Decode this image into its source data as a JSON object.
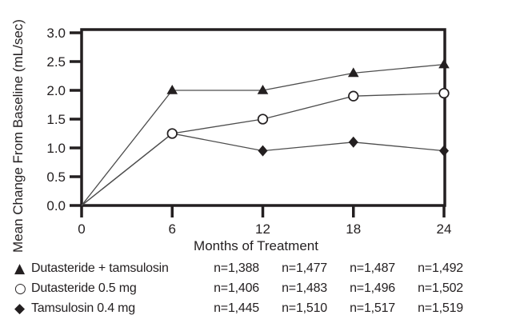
{
  "chart_data": {
    "type": "line",
    "title": "",
    "xlabel": "Months of Treatment",
    "ylabel": "Mean Change From Baseline (mL/sec)",
    "x": [
      0,
      6,
      12,
      18,
      24
    ],
    "x_ticks": [
      "0",
      "6",
      "12",
      "18",
      "24"
    ],
    "y_ticks": [
      "3.0",
      "2.5",
      "2.0",
      "1.5",
      "1.0",
      "0.5",
      "0.0"
    ],
    "xlim": [
      0,
      24
    ],
    "ylim": [
      0,
      3.0
    ],
    "grid": false,
    "legend_position": "below-left",
    "series": [
      {
        "name": "Dutasteride + tamsulosin",
        "marker": "triangle-filled",
        "values": [
          0.0,
          2.0,
          2.0,
          2.3,
          2.45
        ],
        "hidden_marker_indices": [
          0
        ]
      },
      {
        "name": "Dutasteride 0.5 mg",
        "marker": "circle-open",
        "values": [
          0.0,
          1.25,
          1.5,
          1.9,
          1.95
        ],
        "hidden_marker_indices": [
          0
        ]
      },
      {
        "name": "Tamsulosin 0.4 mg",
        "marker": "diamond-filled",
        "values": [
          0.0,
          1.25,
          0.95,
          1.1,
          0.95
        ],
        "hidden_marker_indices": [
          0,
          1
        ]
      }
    ],
    "colors": {
      "line": "#4d4d4d",
      "marker": "#231f20",
      "axis": "#231f20",
      "text": "#231f20",
      "background": "#ffffff"
    }
  },
  "table": {
    "rows": [
      {
        "marker": "▲",
        "label": "Dutasteride + tamsulosin",
        "n": [
          "n=1,388",
          "n=1,477",
          "n=1,487",
          "n=1,492"
        ]
      },
      {
        "marker": "○",
        "label": "Dutasteride 0.5 mg",
        "n": [
          "n=1,406",
          "n=1,483",
          "n=1,496",
          "n=1,502"
        ]
      },
      {
        "marker": "◆",
        "label": "Tamsulosin 0.4 mg",
        "n": [
          "n=1,445",
          "n=1,510",
          "n=1,517",
          "n=1,519"
        ]
      }
    ]
  }
}
